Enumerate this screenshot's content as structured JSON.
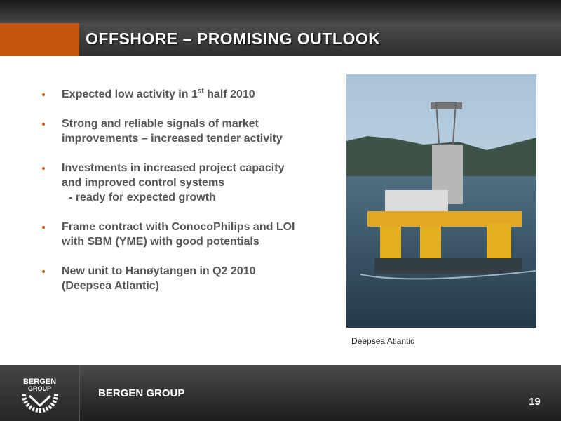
{
  "header": {
    "title": "OFFSHORE – PROMISING OUTLOOK"
  },
  "bullets": [
    {
      "text": "Expected low activity in 1",
      "sup": "st",
      "after": " half 2010"
    },
    {
      "text": "Strong  and reliable signals of market improvements – increased tender activity"
    },
    {
      "text": "Investments in increased project capacity and improved control systems",
      "continuation": "- ready for expected growth"
    },
    {
      "text": "Frame contract with ConocoPhilips and LOI with SBM (YME) with good potentials"
    },
    {
      "text": "New unit to Hanøytangen in Q2 2010 (Deepsea Atlantic)"
    }
  ],
  "image": {
    "caption": "Deepsea Atlantic"
  },
  "footer": {
    "logo": {
      "line1": "BERGEN",
      "line2": "GROUP"
    },
    "brand": "BERGEN GROUP",
    "page_number": "19"
  }
}
